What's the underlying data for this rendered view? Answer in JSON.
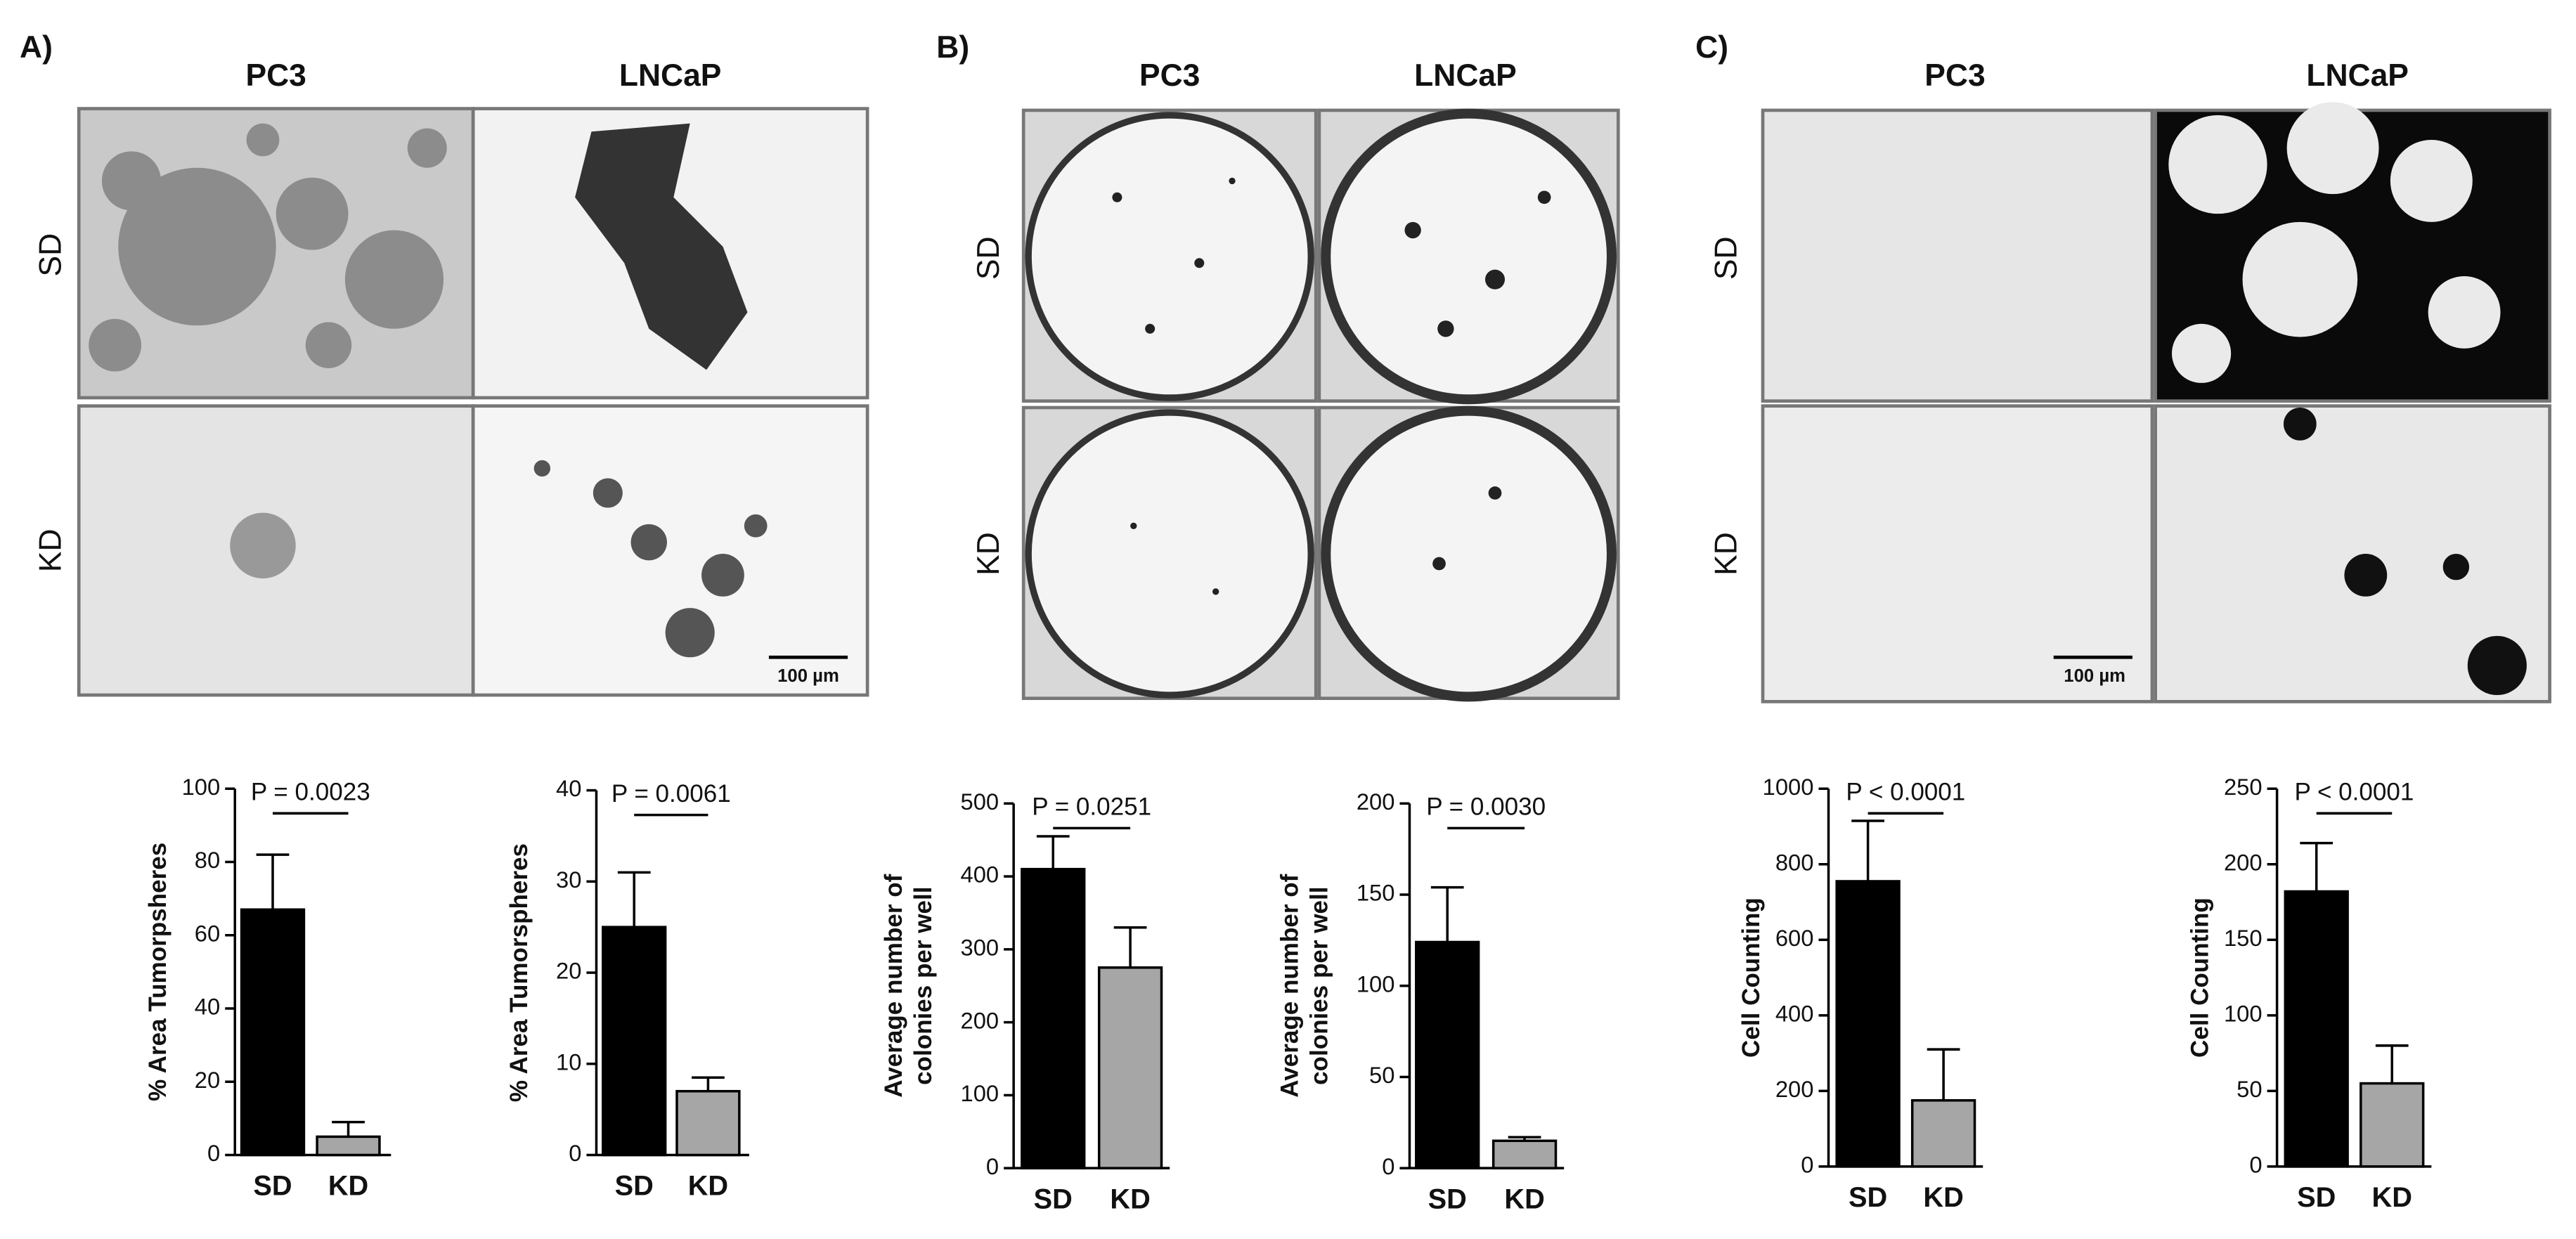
{
  "panels": [
    {
      "label": "A)",
      "columns": [
        "PC3",
        "LNCaP"
      ],
      "rows": [
        "SD",
        "KD"
      ],
      "scale_bar": "100 µm"
    },
    {
      "label": "B)",
      "columns": [
        "PC3",
        "LNCaP"
      ],
      "rows": [
        "SD",
        "KD"
      ]
    },
    {
      "label": "C)",
      "columns": [
        "PC3",
        "LNCaP"
      ],
      "rows": [
        "SD",
        "KD"
      ],
      "scale_bar": "100 µm"
    }
  ],
  "chart_data": [
    {
      "type": "bar",
      "categories": [
        "SD",
        "KD"
      ],
      "values": [
        67,
        5
      ],
      "errors": [
        15,
        4
      ],
      "colors": [
        "#000000",
        "#a6a6a6"
      ],
      "ylabel": [
        "% Area Tumorpsheres"
      ],
      "annotation": "P = 0.0023",
      "ylim": [
        0,
        100
      ],
      "yticks": [
        0,
        20,
        40,
        60,
        80,
        100
      ]
    },
    {
      "type": "bar",
      "categories": [
        "SD",
        "KD"
      ],
      "values": [
        25,
        7
      ],
      "errors": [
        6,
        1.5
      ],
      "colors": [
        "#000000",
        "#a6a6a6"
      ],
      "ylabel": [
        "% Area Tumorspheres"
      ],
      "annotation": "P = 0.0061",
      "ylim": [
        0,
        40
      ],
      "yticks": [
        0,
        10,
        20,
        30,
        40
      ]
    },
    {
      "type": "bar",
      "categories": [
        "SD",
        "KD"
      ],
      "values": [
        410,
        275
      ],
      "errors": [
        45,
        55
      ],
      "colors": [
        "#000000",
        "#a6a6a6"
      ],
      "ylabel": [
        "Average number of",
        "colonies per well"
      ],
      "annotation": "P = 0.0251",
      "ylim": [
        0,
        500
      ],
      "yticks": [
        0,
        100,
        200,
        300,
        400,
        500
      ]
    },
    {
      "type": "bar",
      "categories": [
        "SD",
        "KD"
      ],
      "values": [
        124,
        15
      ],
      "errors": [
        30,
        2
      ],
      "colors": [
        "#000000",
        "#a6a6a6"
      ],
      "ylabel": [
        "Average number of",
        "colonies per well"
      ],
      "annotation": "P = 0.0030",
      "ylim": [
        0,
        200
      ],
      "yticks": [
        0,
        50,
        100,
        150,
        200
      ]
    },
    {
      "type": "bar",
      "categories": [
        "SD",
        "KD"
      ],
      "values": [
        755,
        175
      ],
      "errors": [
        160,
        135
      ],
      "colors": [
        "#000000",
        "#a6a6a6"
      ],
      "ylabel": [
        "Cell Counting"
      ],
      "annotation": "P < 0.0001",
      "ylim": [
        0,
        1000
      ],
      "yticks": [
        0,
        200,
        400,
        600,
        800,
        1000
      ]
    },
    {
      "type": "bar",
      "categories": [
        "SD",
        "KD"
      ],
      "values": [
        182,
        55
      ],
      "errors": [
        32,
        25
      ],
      "colors": [
        "#000000",
        "#a6a6a6"
      ],
      "ylabel": [
        "Cell Counting"
      ],
      "annotation": "P < 0.0001",
      "ylim": [
        0,
        250
      ],
      "yticks": [
        0,
        50,
        100,
        150,
        200,
        250
      ]
    }
  ]
}
